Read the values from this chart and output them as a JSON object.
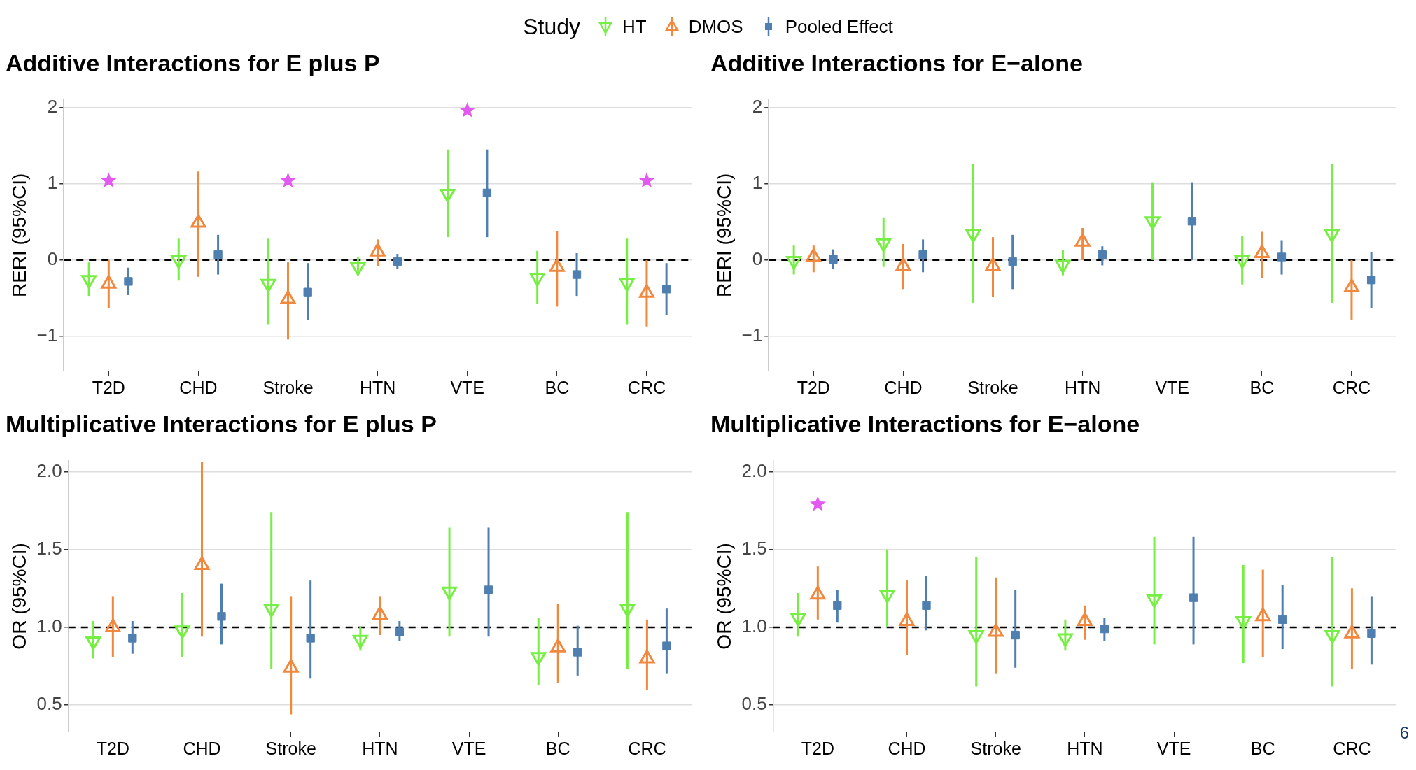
{
  "chart_data": [
    {
      "type": "scatter",
      "title": "Additive Interactions for E plus P",
      "ylabel": "RERI (95%CI)",
      "legend": "top",
      "legend_title": "Study",
      "grid": "y",
      "categories": [
        "T2D",
        "CHD",
        "Stroke",
        "HTN",
        "VTE",
        "BC",
        "CRC"
      ],
      "ylim": [
        -1.45,
        2.1
      ],
      "yticks": [
        {
          "value": -1,
          "label": "−1"
        },
        0,
        1,
        2
      ],
      "ref_lines": [
        {
          "axis": "y",
          "value": 0,
          "color": "#000000",
          "line_style": "dashed"
        }
      ],
      "series": [
        {
          "name": "HT",
          "color": "#77ee44",
          "marker": "triangle",
          "values": [
            -0.26,
            0.0,
            -0.31,
            -0.09,
            0.87,
            -0.23,
            -0.3
          ],
          "errors": [
            [
              -0.47,
              -0.03
            ],
            [
              -0.27,
              0.28
            ],
            [
              -0.84,
              0.28
            ],
            [
              -0.15,
              0.04
            ],
            [
              0.3,
              1.45
            ],
            [
              -0.57,
              0.12
            ],
            [
              -0.84,
              0.28
            ]
          ]
        },
        {
          "name": "DMOS",
          "color": "#f0883e",
          "marker": "triangle",
          "values": [
            -0.31,
            0.49,
            -0.51,
            0.11,
            null,
            -0.09,
            -0.43
          ],
          "errors": [
            [
              -0.63,
              0.0
            ],
            [
              -0.22,
              1.16
            ],
            [
              -1.04,
              -0.03
            ],
            [
              -0.08,
              0.27
            ],
            null,
            [
              -0.61,
              0.38
            ],
            [
              -0.87,
              0.0
            ]
          ]
        },
        {
          "name": "Pooled Effect",
          "color": "#4e7fb0",
          "marker": "square",
          "values": [
            -0.28,
            0.07,
            -0.42,
            -0.02,
            0.88,
            -0.19,
            -0.38
          ],
          "errors": [
            [
              -0.46,
              -0.1
            ],
            [
              -0.19,
              0.33
            ],
            [
              -0.79,
              -0.04
            ],
            [
              -0.12,
              0.08
            ],
            [
              0.3,
              1.45
            ],
            [
              -0.47,
              0.09
            ],
            [
              -0.72,
              -0.04
            ]
          ]
        },
        {
          "color": "#e35af0",
          "marker": "star",
          "x": [
            "T2D",
            "Stroke",
            "VTE",
            "CRC"
          ],
          "values": [
            1.04,
            1.04,
            1.96,
            1.04
          ]
        }
      ]
    },
    {
      "type": "scatter",
      "title": "Additive Interactions for E−alone",
      "ylabel": "RERI (95%CI)",
      "grid": "y",
      "categories": [
        "T2D",
        "CHD",
        "Stroke",
        "HTN",
        "VTE",
        "BC",
        "CRC"
      ],
      "ylim": [
        -1.45,
        2.1
      ],
      "yticks": [
        {
          "value": -1,
          "label": "−1"
        },
        0,
        1,
        2
      ],
      "ref_lines": [
        {
          "axis": "y",
          "value": 0,
          "color": "#000000",
          "line_style": "dashed"
        }
      ],
      "series": [
        {
          "color": "#77ee44",
          "marker": "triangle",
          "values": [
            -0.01,
            0.22,
            0.34,
            -0.06,
            0.51,
            0.0,
            0.34
          ],
          "errors": [
            [
              -0.19,
              0.19
            ],
            [
              -0.09,
              0.56
            ],
            [
              -0.56,
              1.26
            ],
            [
              -0.2,
              0.13
            ],
            [
              0.0,
              1.02
            ],
            [
              -0.32,
              0.32
            ],
            [
              -0.56,
              1.26
            ]
          ]
        },
        {
          "color": "#f0883e",
          "marker": "triangle",
          "values": [
            0.04,
            -0.08,
            -0.08,
            0.24,
            null,
            0.09,
            -0.36
          ],
          "errors": [
            [
              -0.16,
              0.19
            ],
            [
              -0.38,
              0.21
            ],
            [
              -0.48,
              0.3
            ],
            [
              0.0,
              0.42
            ],
            null,
            [
              -0.24,
              0.37
            ],
            [
              -0.78,
              0.0
            ]
          ]
        },
        {
          "color": "#4e7fb0",
          "marker": "square",
          "values": [
            0.01,
            0.07,
            -0.02,
            0.07,
            0.51,
            0.04,
            -0.26
          ],
          "errors": [
            [
              -0.12,
              0.14
            ],
            [
              -0.16,
              0.27
            ],
            [
              -0.38,
              0.33
            ],
            [
              -0.07,
              0.18
            ],
            [
              0.0,
              1.02
            ],
            [
              -0.19,
              0.26
            ],
            [
              -0.63,
              0.1
            ]
          ]
        }
      ]
    },
    {
      "type": "scatter",
      "title": "Multiplicative Interactions for E plus P",
      "ylabel": "OR (95%CI)",
      "grid": "y",
      "categories": [
        "T2D",
        "CHD",
        "Stroke",
        "HTN",
        "VTE",
        "BC",
        "CRC"
      ],
      "ylim": [
        0.33,
        2.07
      ],
      "yticks": [
        {
          "value": 0.5,
          "label": "0.5"
        },
        {
          "value": 1,
          "label": "1.0"
        },
        {
          "value": 1.5,
          "label": "1.5"
        },
        {
          "value": 2,
          "label": "2.0"
        }
      ],
      "ref_lines": [
        {
          "axis": "y",
          "value": 1,
          "color": "#000000",
          "line_style": "dashed"
        }
      ],
      "series": [
        {
          "color": "#77ee44",
          "marker": "triangle",
          "values": [
            0.91,
            0.98,
            1.12,
            0.92,
            1.23,
            0.81,
            1.12
          ],
          "errors": [
            [
              0.8,
              1.04
            ],
            [
              0.81,
              1.22
            ],
            [
              0.73,
              1.74
            ],
            [
              0.85,
              1.0
            ],
            [
              0.94,
              1.64
            ],
            [
              0.63,
              1.06
            ],
            [
              0.73,
              1.74
            ]
          ]
        },
        {
          "color": "#f0883e",
          "marker": "triangle",
          "values": [
            1.0,
            1.4,
            0.74,
            1.08,
            null,
            0.87,
            0.8
          ],
          "errors": [
            [
              0.81,
              1.2
            ],
            [
              0.94,
              2.06
            ],
            [
              0.44,
              1.2
            ],
            [
              0.95,
              1.2
            ],
            null,
            [
              0.64,
              1.15
            ],
            [
              0.6,
              1.05
            ]
          ]
        },
        {
          "color": "#4e7fb0",
          "marker": "square",
          "values": [
            0.93,
            1.07,
            0.93,
            0.97,
            1.24,
            0.84,
            0.88
          ],
          "errors": [
            [
              0.83,
              1.04
            ],
            [
              0.89,
              1.28
            ],
            [
              0.67,
              1.3
            ],
            [
              0.91,
              1.04
            ],
            [
              0.94,
              1.64
            ],
            [
              0.69,
              1.01
            ],
            [
              0.7,
              1.12
            ]
          ]
        }
      ]
    },
    {
      "type": "scatter",
      "title": "Multiplicative Interactions for E−alone",
      "ylabel": "OR (95%CI)",
      "grid": "y",
      "categories": [
        "T2D",
        "CHD",
        "Stroke",
        "HTN",
        "VTE",
        "BC",
        "CRC"
      ],
      "ylim": [
        0.33,
        2.07
      ],
      "yticks": [
        {
          "value": 0.5,
          "label": "0.5"
        },
        {
          "value": 1,
          "label": "1.0"
        },
        {
          "value": 1.5,
          "label": "1.5"
        },
        {
          "value": 2,
          "label": "2.0"
        }
      ],
      "ref_lines": [
        {
          "axis": "y",
          "value": 1,
          "color": "#000000",
          "line_style": "dashed"
        }
      ],
      "annotations": [
        "6"
      ],
      "series": [
        {
          "color": "#77ee44",
          "marker": "triangle",
          "values": [
            1.06,
            1.21,
            0.95,
            0.93,
            1.18,
            1.04,
            0.95
          ],
          "errors": [
            [
              0.94,
              1.22
            ],
            [
              1.0,
              1.5
            ],
            [
              0.62,
              1.45
            ],
            [
              0.85,
              1.05
            ],
            [
              0.89,
              1.58
            ],
            [
              0.77,
              1.4
            ],
            [
              0.62,
              1.45
            ]
          ]
        },
        {
          "color": "#f0883e",
          "marker": "triangle",
          "values": [
            1.21,
            1.04,
            0.97,
            1.04,
            null,
            1.07,
            0.96
          ],
          "errors": [
            [
              1.05,
              1.39
            ],
            [
              0.82,
              1.3
            ],
            [
              0.7,
              1.32
            ],
            [
              0.92,
              1.14
            ],
            null,
            [
              0.81,
              1.37
            ],
            [
              0.73,
              1.25
            ]
          ]
        },
        {
          "color": "#4e7fb0",
          "marker": "square",
          "values": [
            1.14,
            1.14,
            0.95,
            0.99,
            1.19,
            1.05,
            0.96
          ],
          "errors": [
            [
              1.03,
              1.24
            ],
            [
              0.98,
              1.33
            ],
            [
              0.74,
              1.24
            ],
            [
              0.91,
              1.06
            ],
            [
              0.89,
              1.58
            ],
            [
              0.86,
              1.27
            ],
            [
              0.76,
              1.2
            ]
          ]
        },
        {
          "color": "#e35af0",
          "marker": "star",
          "x": [
            "T2D"
          ],
          "values": [
            1.79
          ]
        }
      ]
    }
  ]
}
